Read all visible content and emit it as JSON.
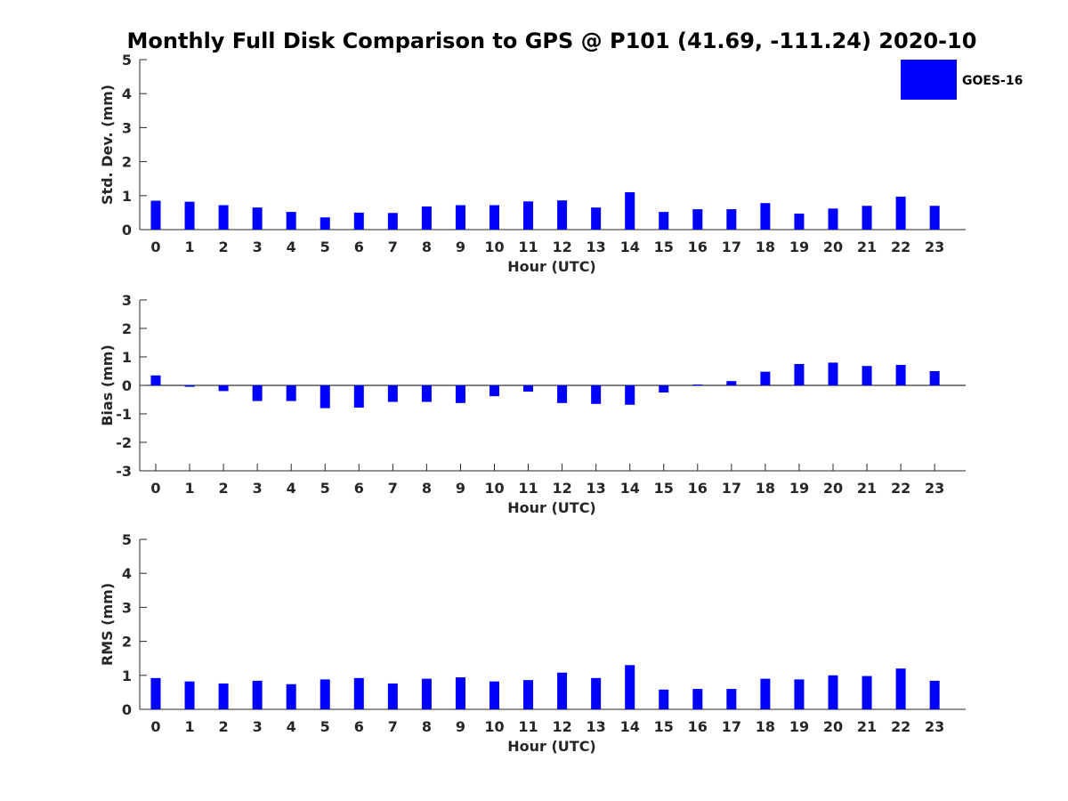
{
  "chart_data": {
    "type": "bar",
    "title": "Monthly Full Disk Comparison to GPS @ P101 (41.69, -111.24) 2020-10",
    "legend": {
      "placement": "top-right",
      "entries": [
        {
          "name": "GOES-16",
          "color": "#0000ff"
        }
      ]
    },
    "bar_color": "#0000ff",
    "categories": [
      "0",
      "1",
      "2",
      "3",
      "4",
      "5",
      "6",
      "7",
      "8",
      "9",
      "10",
      "11",
      "12",
      "13",
      "14",
      "15",
      "16",
      "17",
      "18",
      "19",
      "20",
      "21",
      "22",
      "23"
    ],
    "panels": [
      {
        "id": "std",
        "ylabel": "Std. Dev. (mm)",
        "xlabel": "Hour (UTC)",
        "ylim": [
          0,
          5
        ],
        "yticks": [
          "0",
          "1",
          "2",
          "3",
          "4",
          "5"
        ],
        "series": [
          {
            "name": "GOES-16",
            "values": [
              0.85,
              0.82,
              0.72,
              0.65,
              0.52,
              0.36,
              0.5,
              0.49,
              0.68,
              0.72,
              0.72,
              0.83,
              0.86,
              0.65,
              1.1,
              0.52,
              0.6,
              0.6,
              0.78,
              0.47,
              0.62,
              0.7,
              0.97,
              0.7
            ]
          }
        ]
      },
      {
        "id": "bias",
        "ylabel": "Bias (mm)",
        "xlabel": "Hour (UTC)",
        "ylim": [
          -3,
          3
        ],
        "yticks": [
          "-3",
          "-2",
          "-1",
          "0",
          "1",
          "2",
          "3"
        ],
        "zero_line": true,
        "series": [
          {
            "name": "GOES-16",
            "values": [
              0.35,
              -0.05,
              -0.2,
              -0.55,
              -0.55,
              -0.8,
              -0.78,
              -0.58,
              -0.58,
              -0.62,
              -0.38,
              -0.22,
              -0.62,
              -0.65,
              -0.68,
              -0.25,
              0.03,
              0.15,
              0.48,
              0.75,
              0.8,
              0.68,
              0.72,
              0.5
            ]
          }
        ]
      },
      {
        "id": "rms",
        "ylabel": "RMS (mm)",
        "xlabel": "Hour (UTC)",
        "ylim": [
          0,
          5
        ],
        "yticks": [
          "0",
          "1",
          "2",
          "3",
          "4",
          "5"
        ],
        "series": [
          {
            "name": "GOES-16",
            "values": [
              0.92,
              0.82,
              0.76,
              0.84,
              0.74,
              0.88,
              0.92,
              0.76,
              0.9,
              0.94,
              0.82,
              0.86,
              1.08,
              0.92,
              1.3,
              0.58,
              0.6,
              0.6,
              0.9,
              0.88,
              1.0,
              0.98,
              1.2,
              0.84
            ]
          }
        ]
      }
    ]
  }
}
